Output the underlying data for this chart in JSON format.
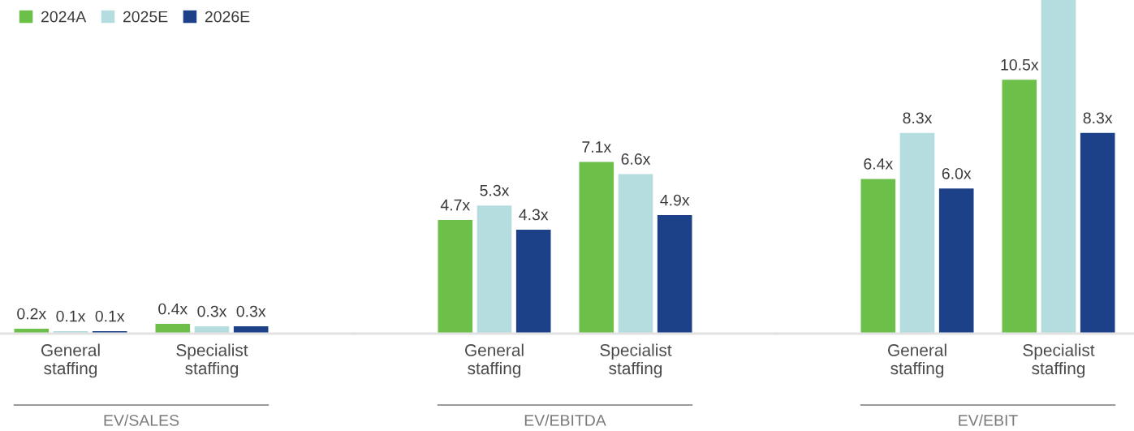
{
  "chart_data": [
    {
      "type": "bar",
      "categories": [
        "General staffing",
        "Specialist staffing"
      ],
      "xlabel": "EV/SALES",
      "tick_labels": "x",
      "legend": "top left",
      "series": [
        {
          "name": "2024A",
          "color": "#6cc04a",
          "values": [
            0.2,
            0.4
          ],
          "value_labels": [
            "0.2x",
            "0.4x"
          ]
        },
        {
          "name": "2025E",
          "color": "#b5dde0",
          "values": [
            0.1,
            0.3
          ],
          "value_labels": [
            "0.1x",
            "0.3x"
          ]
        },
        {
          "name": "2026E",
          "color": "#1d4189",
          "values": [
            0.1,
            0.3
          ],
          "value_labels": [
            "0.1x",
            "0.3x"
          ]
        }
      ]
    },
    {
      "type": "bar",
      "categories": [
        "General staffing",
        "Specialist staffing"
      ],
      "xlabel": "EV/EBITDA",
      "tick_labels": "x",
      "series": [
        {
          "name": "2024A",
          "color": "#6cc04a",
          "values": [
            4.7,
            7.1
          ],
          "value_labels": [
            "4.7x",
            "7.1x"
          ]
        },
        {
          "name": "2025E",
          "color": "#b5dde0",
          "values": [
            5.3,
            6.6
          ],
          "value_labels": [
            "5.3x",
            "6.6x"
          ]
        },
        {
          "name": "2026E",
          "color": "#1d4189",
          "values": [
            4.3,
            4.9
          ],
          "value_labels": [
            "4.3x",
            "4.9x"
          ]
        }
      ]
    },
    {
      "type": "bar",
      "categories": [
        "General staffing",
        "Specialist staffing"
      ],
      "xlabel": "EV/EBIT",
      "ylim": [
        0,
        13.8
      ],
      "tick_labels": "x",
      "series": [
        {
          "name": "2024A",
          "color": "#6cc04a",
          "values": [
            6.4,
            10.5
          ],
          "value_labels": [
            "6.4x",
            "10.5x"
          ]
        },
        {
          "name": "2025E",
          "color": "#b5dde0",
          "values": [
            8.3,
            13.8
          ],
          "value_labels": [
            "8.3x",
            null
          ]
        },
        {
          "name": "2026E",
          "color": "#1d4189",
          "values": [
            6.0,
            8.3
          ],
          "value_labels": [
            "6.0x",
            "8.3x"
          ]
        }
      ]
    }
  ]
}
